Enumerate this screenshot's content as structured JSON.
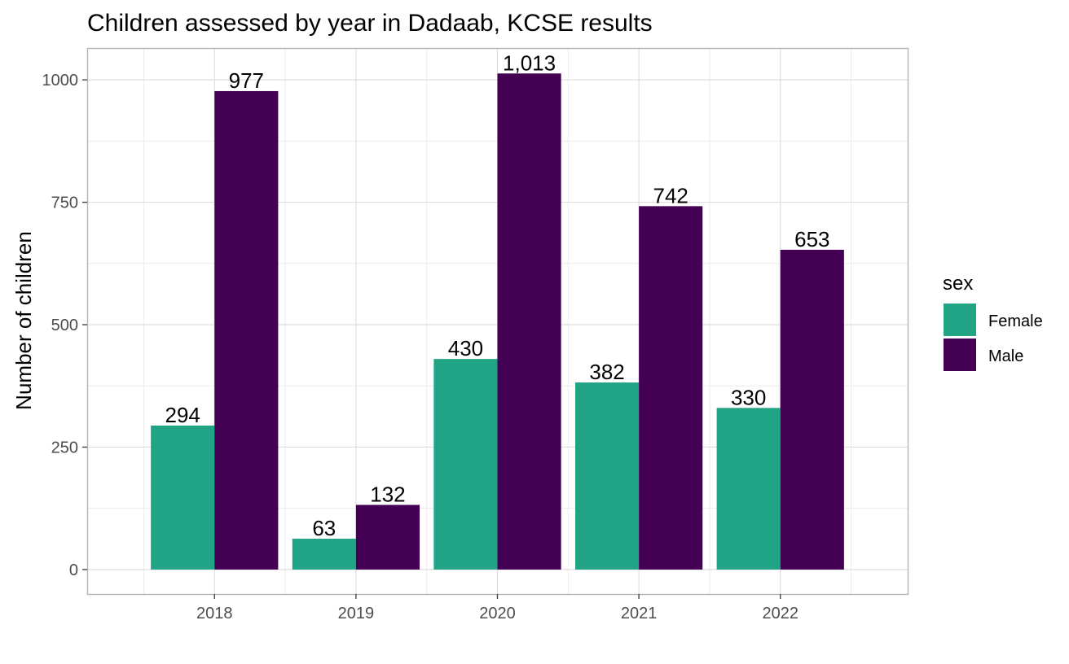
{
  "chart_data": {
    "type": "bar",
    "title": "Children assessed by year in Dadaab, KCSE results",
    "xlabel": "",
    "ylabel": "Number of children",
    "categories": [
      "2018",
      "2019",
      "2020",
      "2021",
      "2022"
    ],
    "series": [
      {
        "name": "Female",
        "color": "#21a386",
        "values": [
          294,
          63,
          430,
          382,
          330
        ],
        "labels": [
          "294",
          "63",
          "430",
          "382",
          "330"
        ]
      },
      {
        "name": "Male",
        "color": "#440154",
        "values": [
          977,
          132,
          1013,
          742,
          653
        ],
        "labels": [
          "977",
          "132",
          "1,013",
          "742",
          "653"
        ]
      }
    ],
    "ylim": [
      -50,
      1065
    ],
    "yticks": [
      0,
      250,
      500,
      750,
      1000
    ],
    "ytick_labels": [
      "0",
      "250",
      "500",
      "750",
      "1000"
    ],
    "legend": {
      "title": "sex",
      "position": "right"
    },
    "grid": true
  }
}
